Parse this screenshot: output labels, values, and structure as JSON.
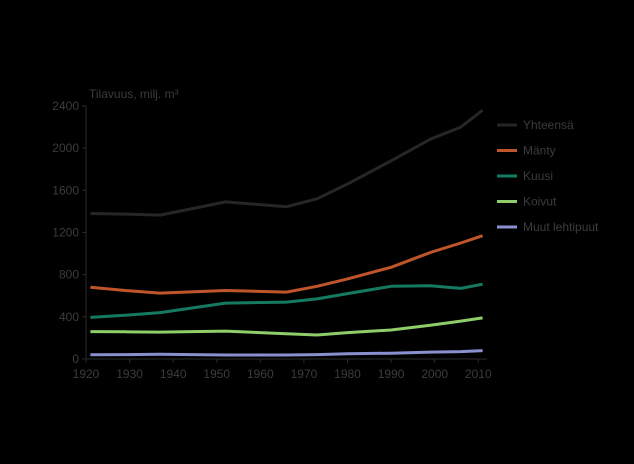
{
  "chart_data": {
    "type": "line",
    "title": "",
    "xlabel": "",
    "ylabel": "Tilavuus, milj. m³",
    "xlim": [
      1920,
      2012
    ],
    "ylim": [
      0,
      2400
    ],
    "xticks": [
      "1920",
      "1930",
      "1940",
      "1950",
      "1960",
      "1970",
      "1980",
      "1990",
      "2000",
      "2010"
    ],
    "yticks": [
      "0",
      "400",
      "800",
      "1200",
      "1600",
      "2000",
      "2400"
    ],
    "grid": false,
    "legend_position": "right",
    "series": [
      {
        "name": "Yhteensä",
        "color": "#262626",
        "x": [
          1921,
          1929,
          1937,
          1952,
          1966,
          1973,
          1980,
          1990,
          1999,
          2006,
          2011
        ],
        "y": [
          1380,
          1375,
          1365,
          1490,
          1445,
          1520,
          1660,
          1880,
          2085,
          2200,
          2360
        ]
      },
      {
        "name": "Mänty",
        "color": "#c0552b",
        "x": [
          1921,
          1929,
          1937,
          1952,
          1966,
          1973,
          1980,
          1990,
          1999,
          2006,
          2011
        ],
        "y": [
          680,
          650,
          625,
          650,
          635,
          690,
          760,
          870,
          1010,
          1100,
          1170
        ]
      },
      {
        "name": "Kuusi",
        "color": "#157a62",
        "x": [
          1921,
          1929,
          1937,
          1952,
          1966,
          1973,
          1980,
          1990,
          1999,
          2006,
          2011
        ],
        "y": [
          395,
          415,
          440,
          530,
          540,
          570,
          620,
          690,
          695,
          670,
          710
        ]
      },
      {
        "name": "Koivut",
        "color": "#8fcc6a",
        "x": [
          1921,
          1929,
          1937,
          1952,
          1966,
          1973,
          1980,
          1990,
          1999,
          2006,
          2011
        ],
        "y": [
          260,
          258,
          255,
          265,
          240,
          228,
          250,
          275,
          320,
          360,
          390
        ]
      },
      {
        "name": "Muut lehtipuut",
        "color": "#8a8fcf",
        "x": [
          1921,
          1929,
          1937,
          1952,
          1966,
          1973,
          1980,
          1990,
          1999,
          2006,
          2011
        ],
        "y": [
          40,
          42,
          45,
          38,
          38,
          42,
          50,
          55,
          65,
          70,
          80
        ]
      }
    ]
  }
}
